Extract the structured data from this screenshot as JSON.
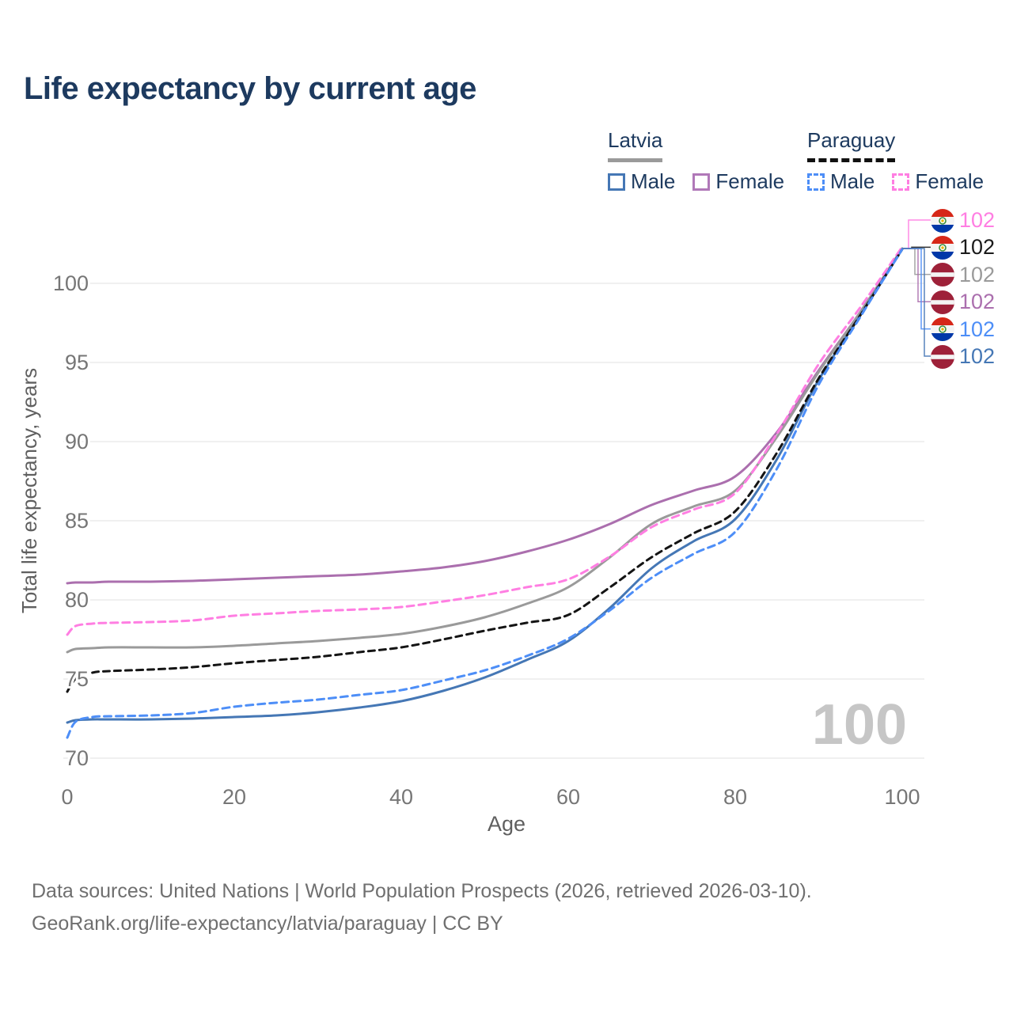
{
  "title": "Life expectancy by current age",
  "legend": {
    "groups": [
      {
        "label": "Latvia",
        "line_style": "solid",
        "underline_color": "#9a9a9a",
        "items": [
          {
            "label": "Male",
            "color": "#4577b5",
            "dashed": false
          },
          {
            "label": "Female",
            "color": "#b078b8",
            "dashed": false
          }
        ]
      },
      {
        "label": "Paraguay",
        "line_style": "dashed",
        "underline_color": "#111111",
        "items": [
          {
            "label": "Male",
            "color": "#4d8ef7",
            "dashed": true
          },
          {
            "label": "Female",
            "color": "#ff7ee2",
            "dashed": true
          }
        ]
      }
    ]
  },
  "chart_data": {
    "type": "line",
    "title": "Life expectancy by current age",
    "xlabel": "Age",
    "ylabel": "Total life expectancy, years",
    "xlim": [
      0,
      100
    ],
    "ylim": [
      69.5,
      102.5
    ],
    "xticks": [
      0,
      20,
      40,
      60,
      80,
      100
    ],
    "yticks": [
      70,
      75,
      80,
      85,
      90,
      95,
      100
    ],
    "grid": "horizontal",
    "legend_position": "top-right",
    "x": [
      0,
      1,
      3,
      5,
      10,
      15,
      20,
      25,
      30,
      35,
      40,
      45,
      50,
      55,
      60,
      65,
      70,
      75,
      80,
      85,
      90,
      95,
      100
    ],
    "series": [
      {
        "name": "Latvia Female",
        "country": "Latvia",
        "sex": "Female",
        "color": "#ab6fae",
        "dash": null,
        "values": [
          81.05,
          81.1,
          81.1,
          81.15,
          81.15,
          81.2,
          81.3,
          81.4,
          81.5,
          81.6,
          81.8,
          82.05,
          82.45,
          83.05,
          83.8,
          84.8,
          86.0,
          86.9,
          87.8,
          90.6,
          94.5,
          98.2,
          102.2
        ]
      },
      {
        "name": "Latvia",
        "country": "Latvia",
        "sex": "Both",
        "color": "#9a9a9a",
        "dash": null,
        "values": [
          76.7,
          76.9,
          76.95,
          77.0,
          77.0,
          77.0,
          77.1,
          77.25,
          77.4,
          77.6,
          77.85,
          78.3,
          78.9,
          79.75,
          80.8,
          82.7,
          84.8,
          85.9,
          86.9,
          90.3,
          94.4,
          98.2,
          102.2
        ]
      },
      {
        "name": "Latvia Male",
        "country": "Latvia",
        "sex": "Male",
        "color": "#4577b5",
        "dash": null,
        "values": [
          72.25,
          72.4,
          72.45,
          72.45,
          72.45,
          72.5,
          72.6,
          72.7,
          72.9,
          73.2,
          73.6,
          74.25,
          75.1,
          76.2,
          77.4,
          79.5,
          82.0,
          83.7,
          85.1,
          88.9,
          93.9,
          98.0,
          102.15
        ]
      },
      {
        "name": "Paraguay Female",
        "country": "Paraguay",
        "sex": "Female",
        "color": "#ff7ee2",
        "dash": "9 6",
        "values": [
          77.8,
          78.35,
          78.5,
          78.55,
          78.6,
          78.7,
          79.0,
          79.15,
          79.3,
          79.4,
          79.55,
          79.9,
          80.3,
          80.8,
          81.3,
          82.75,
          84.6,
          85.7,
          86.75,
          90.5,
          94.9,
          98.5,
          102.3
        ]
      },
      {
        "name": "Paraguay",
        "country": "Paraguay",
        "sex": "Both",
        "color": "#141414",
        "dash": "8 6",
        "values": [
          74.2,
          75.0,
          75.4,
          75.5,
          75.6,
          75.75,
          76.0,
          76.2,
          76.4,
          76.7,
          77.0,
          77.5,
          78.05,
          78.55,
          79.05,
          80.8,
          82.7,
          84.2,
          85.6,
          89.3,
          94.0,
          98.0,
          102.15
        ]
      },
      {
        "name": "Paraguay Male",
        "country": "Paraguay",
        "sex": "Male",
        "color": "#4d8ef7",
        "dash": "9 6",
        "values": [
          71.3,
          72.3,
          72.6,
          72.65,
          72.7,
          72.85,
          73.25,
          73.5,
          73.7,
          74.0,
          74.3,
          74.9,
          75.55,
          76.45,
          77.55,
          79.35,
          81.4,
          82.9,
          84.3,
          88.3,
          93.6,
          97.9,
          102.15
        ]
      }
    ],
    "end_value_labels": [
      {
        "text": "102",
        "color": "#ff7ee2",
        "flag": "paraguay",
        "series": "Paraguay Female"
      },
      {
        "text": "102",
        "color": "#1a1a1a",
        "flag": "paraguay",
        "series": "Paraguay"
      },
      {
        "text": "102",
        "color": "#9a9a9a",
        "flag": "latvia",
        "series": "Latvia"
      },
      {
        "text": "102",
        "color": "#ab6fae",
        "flag": "latvia",
        "series": "Latvia Female"
      },
      {
        "text": "102",
        "color": "#4d8ef7",
        "flag": "paraguay",
        "series": "Paraguay Male"
      },
      {
        "text": "102",
        "color": "#4577b5",
        "flag": "latvia",
        "series": "Latvia Male"
      }
    ]
  },
  "watermark": "100",
  "footer": {
    "line1": "Data sources: United Nations | World Population Prospects (2026, retrieved 2026-03-10).",
    "line2": "GeoRank.org/life-expectancy/latvia/paraguay | CC BY"
  }
}
